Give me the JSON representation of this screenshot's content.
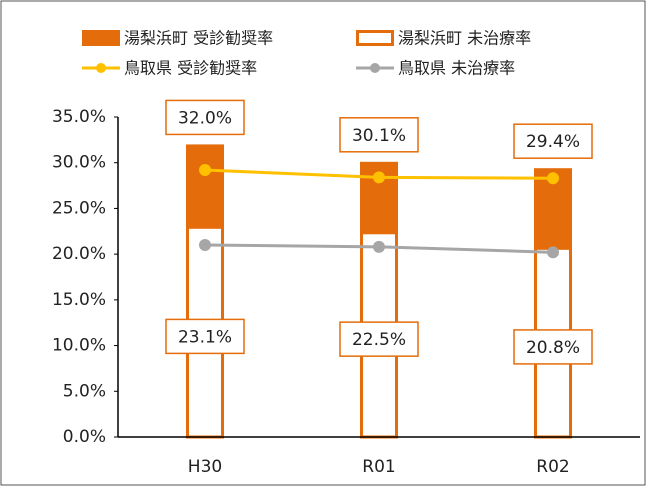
{
  "chart_data": {
    "type": "bar",
    "categories": [
      "H30",
      "R01",
      "R02"
    ],
    "series": [
      {
        "name": "湯梨浜町 受診勧奨率",
        "color": "#e46c0a",
        "style": "filled",
        "values": [
          32.0,
          30.1,
          29.4
        ],
        "value_labels": [
          "32.0%",
          "30.1%",
          "29.4%"
        ]
      },
      {
        "name": "湯梨浜町 未治療率",
        "color": "#e46c0a",
        "style": "outline",
        "values": [
          23.1,
          22.5,
          20.8
        ],
        "value_labels": [
          "23.1%",
          "22.5%",
          "20.8%"
        ]
      },
      {
        "name": "鳥取県 受診勧奨率",
        "color": "#ffc000",
        "style": "line",
        "values": [
          29.2,
          28.4,
          28.3
        ]
      },
      {
        "name": "鳥取県 未治療率",
        "color": "#a6a6a6",
        "style": "line",
        "values": [
          21.0,
          20.8,
          20.2
        ]
      }
    ],
    "ylim": [
      0,
      35
    ],
    "yticks": [
      {
        "value": 0,
        "label": "0.0%"
      },
      {
        "value": 5,
        "label": "5.0%"
      },
      {
        "value": 10,
        "label": "10.0%"
      },
      {
        "value": 15,
        "label": "15.0%"
      },
      {
        "value": 20,
        "label": "20.0%"
      },
      {
        "value": 25,
        "label": "25.0%"
      },
      {
        "value": 30,
        "label": "30.0%"
      },
      {
        "value": 35,
        "label": "35.0%"
      }
    ],
    "grid": false
  }
}
